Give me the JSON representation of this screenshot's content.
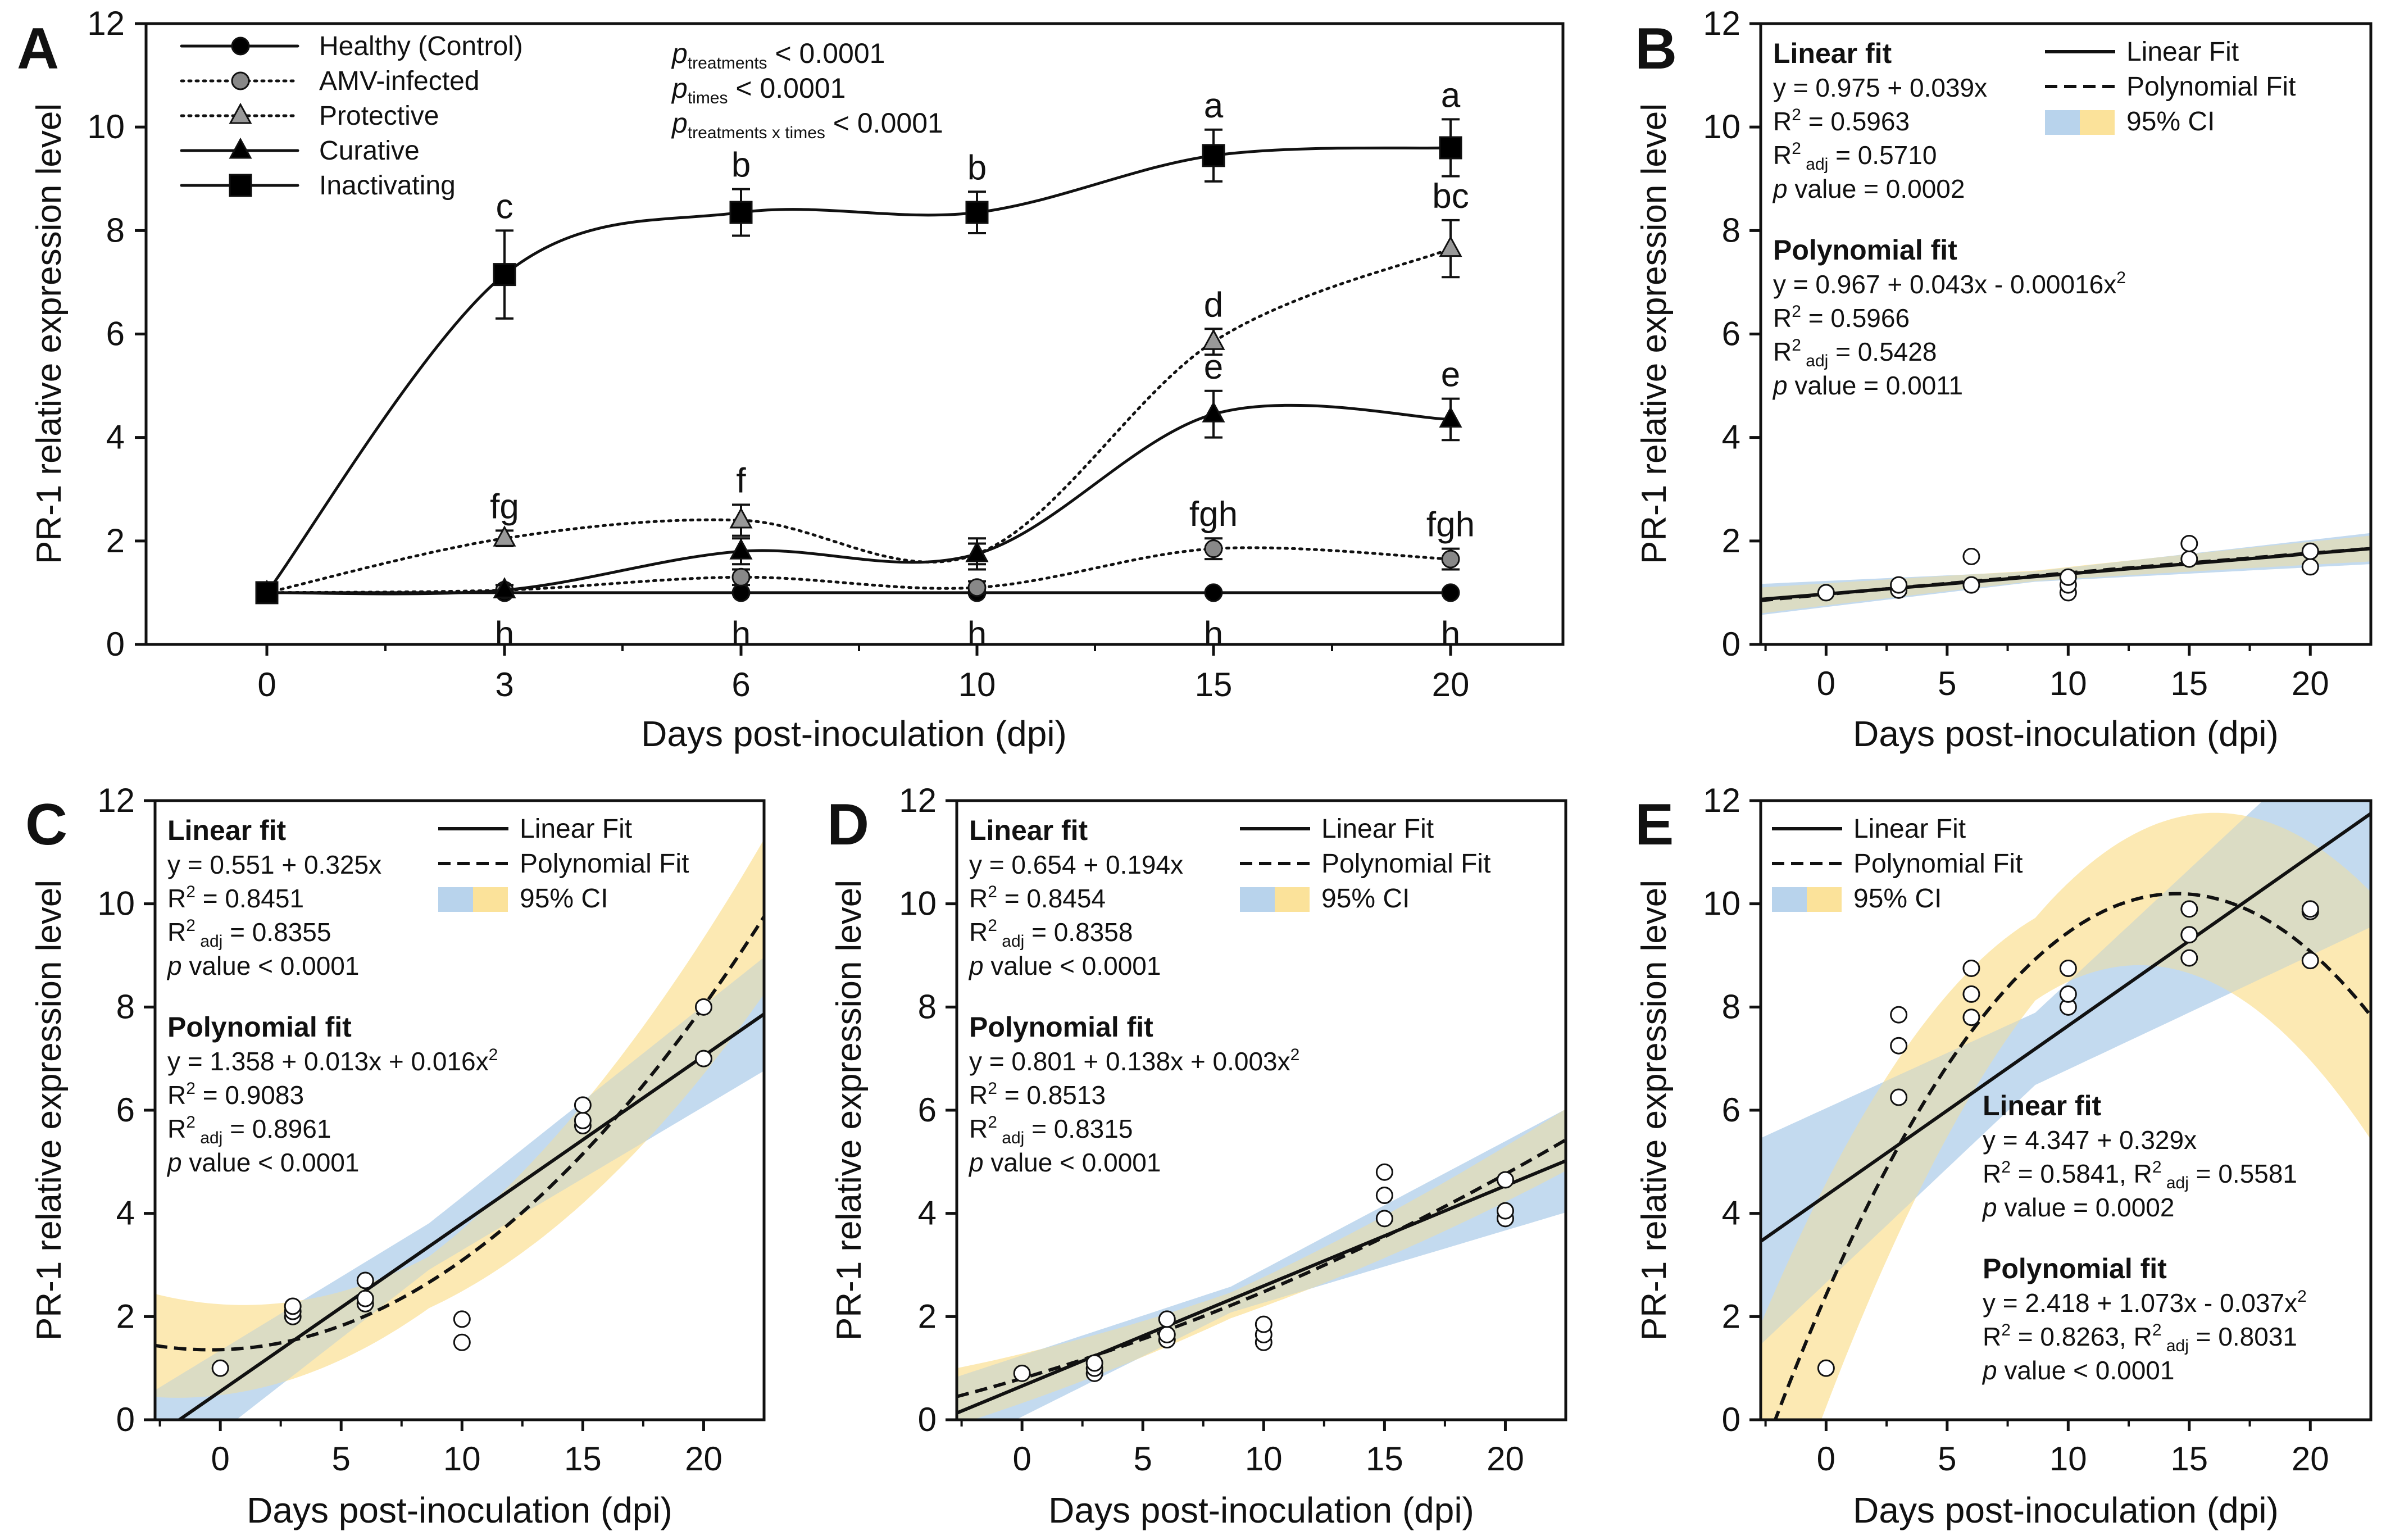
{
  "figure": {
    "x_axis_label": "Days post-inoculation (dpi)",
    "y_axis_label": "PR-1 relative expression level"
  },
  "chart_data": [
    {
      "panel": "A",
      "type": "line",
      "categories": [
        "0",
        "3",
        "6",
        "10",
        "15",
        "20"
      ],
      "xlabel": "Days post-inoculation (dpi)",
      "ylabel": "PR-1 relative expression level",
      "ylim": [
        0,
        12
      ],
      "yticks": [
        "0",
        "2",
        "4",
        "6",
        "8",
        "10",
        "12"
      ],
      "stats": [
        {
          "p": "p",
          "sub": "treatments",
          "text": " < 0.0001"
        },
        {
          "p": "p",
          "sub": "times",
          "text": " < 0.0001"
        },
        {
          "p": "p",
          "sub": "treatments  x times",
          "text": " < 0.0001"
        }
      ],
      "series": [
        {
          "name": "Healthy (Control)",
          "marker": "circle",
          "fill": "#000000",
          "dash": "solid",
          "values": [
            1.0,
            1.0,
            1.0,
            1.0,
            1.0,
            1.0
          ],
          "err": [
            0.05,
            0.05,
            0.05,
            0.05,
            0.05,
            0.05
          ],
          "letters": [
            "",
            "h",
            "h",
            "h",
            "h",
            "h"
          ],
          "letter_pos": "below"
        },
        {
          "name": "AMV-infected",
          "marker": "circle",
          "fill": "#888888",
          "dash": "dotted",
          "values": [
            1.0,
            1.05,
            1.3,
            1.1,
            1.85,
            1.65
          ],
          "err": [
            0.05,
            0.1,
            0.15,
            0.12,
            0.2,
            0.2
          ],
          "letters": [
            "",
            "",
            "",
            "",
            "fgh",
            "fgh"
          ],
          "letter_pos": "above"
        },
        {
          "name": "Protective",
          "marker": "triangle",
          "fill": "#999999",
          "dash": "dotted",
          "values": [
            1.0,
            2.05,
            2.4,
            1.75,
            5.85,
            7.65
          ],
          "err": [
            0.05,
            0.15,
            0.3,
            0.2,
            0.25,
            0.55
          ],
          "letters": [
            "",
            "fg",
            "f",
            "",
            "d",
            "bc"
          ],
          "letter_pos": "above"
        },
        {
          "name": "Curative",
          "marker": "triangle",
          "fill": "#000000",
          "dash": "solid",
          "values": [
            1.0,
            1.05,
            1.8,
            1.75,
            4.45,
            4.35
          ],
          "err": [
            0.05,
            0.1,
            0.25,
            0.3,
            0.45,
            0.4
          ],
          "letters": [
            "",
            "",
            "",
            "",
            "e",
            "e"
          ],
          "letter_pos": "above"
        },
        {
          "name": "Inactivating",
          "marker": "square",
          "fill": "#000000",
          "dash": "solid",
          "values": [
            1.0,
            7.15,
            8.35,
            8.35,
            9.45,
            9.6
          ],
          "err": [
            0.05,
            0.85,
            0.45,
            0.4,
            0.5,
            0.55
          ],
          "letters": [
            "",
            "c",
            "b",
            "b",
            "a",
            "a"
          ],
          "letter_pos": "above"
        }
      ]
    },
    {
      "panel": "B",
      "type": "scatter",
      "xlabel": "Days post-inoculation (dpi)",
      "ylabel": "PR-1 relative expression level",
      "xlim": [
        -2.7,
        22.5
      ],
      "ylim": [
        0,
        12
      ],
      "xticks": [
        "0",
        "5",
        "10",
        "15",
        "20"
      ],
      "yticks": [
        "0",
        "2",
        "4",
        "6",
        "8",
        "10",
        "12"
      ],
      "points": [
        [
          0,
          1.0
        ],
        [
          3,
          1.05
        ],
        [
          3,
          1.15
        ],
        [
          6,
          1.15
        ],
        [
          6,
          1.7
        ],
        [
          10,
          1.0
        ],
        [
          10,
          1.15
        ],
        [
          10,
          1.3
        ],
        [
          15,
          1.65
        ],
        [
          15,
          1.95
        ],
        [
          20,
          1.5
        ],
        [
          20,
          1.8
        ]
      ],
      "linear": {
        "a": 0.975,
        "b": 0.039
      },
      "poly": {
        "a": 0.967,
        "b": 0.043,
        "c": -0.00016
      },
      "ci_half_width": {
        "linear": [
          0.3,
          0.1,
          0.3
        ],
        "poly": [
          0.25,
          0.1,
          0.25
        ]
      },
      "legend": {
        "linear": "Linear Fit",
        "poly": "Polynomial Fit",
        "ci": "95% CI"
      },
      "linear_block": {
        "title": "Linear fit",
        "eq": "y = 0.975 + 0.039x",
        "r2": " = 0.5963",
        "r2adj": " = 0.5710",
        "pval": " value = 0.0002"
      },
      "poly_block": {
        "title": "Polynomial fit",
        "eq": "y = 0.967 + 0.043x - 0.00016x",
        "r2": " = 0.5966",
        "r2adj": " = 0.5428",
        "pval": " value = 0.0011"
      },
      "combined_r2": false
    },
    {
      "panel": "C",
      "type": "scatter",
      "xlabel": "Days post-inoculation (dpi)",
      "ylabel": "PR-1 relative expression level",
      "xlim": [
        -2.7,
        22.5
      ],
      "ylim": [
        0,
        12
      ],
      "xticks": [
        "0",
        "5",
        "10",
        "15",
        "20"
      ],
      "yticks": [
        "0",
        "2",
        "4",
        "6",
        "8",
        "10",
        "12"
      ],
      "points": [
        [
          0,
          1.0
        ],
        [
          3,
          2.0
        ],
        [
          3,
          2.1
        ],
        [
          3,
          2.2
        ],
        [
          6,
          2.25
        ],
        [
          6,
          2.35
        ],
        [
          6,
          2.7
        ],
        [
          10,
          1.5
        ],
        [
          10,
          1.95
        ],
        [
          15,
          5.7
        ],
        [
          15,
          5.8
        ],
        [
          15,
          6.1
        ],
        [
          20,
          7.0
        ],
        [
          20,
          8.0
        ]
      ],
      "linear": {
        "a": 0.551,
        "b": 0.325
      },
      "poly": {
        "a": 1.358,
        "b": 0.013,
        "c": 0.016
      },
      "ci_half_width": {
        "linear": [
          0.9,
          0.45,
          1.1
        ],
        "poly": [
          1.0,
          0.5,
          1.5
        ]
      },
      "legend": {
        "linear": "Linear Fit",
        "poly": "Polynomial Fit",
        "ci": "95% CI"
      },
      "linear_block": {
        "title": "Linear fit",
        "eq": "y = 0.551 + 0.325x",
        "r2": " = 0.8451",
        "r2adj": " = 0.8355",
        "pval": " value < 0.0001"
      },
      "poly_block": {
        "title": "Polynomial fit",
        "eq": "y = 1.358 + 0.013x + 0.016x",
        "r2": " = 0.9083",
        "r2adj": " = 0.8961",
        "pval": " value < 0.0001"
      },
      "combined_r2": false
    },
    {
      "panel": "D",
      "type": "scatter",
      "xlabel": "Days post-inoculation (dpi)",
      "ylabel": "PR-1 relative expression level",
      "xlim": [
        -2.7,
        22.5
      ],
      "ylim": [
        0,
        12
      ],
      "xticks": [
        "0",
        "5",
        "10",
        "15",
        "20"
      ],
      "yticks": [
        "0",
        "2",
        "4",
        "6",
        "8",
        "10",
        "12"
      ],
      "points": [
        [
          0,
          0.9
        ],
        [
          3,
          0.9
        ],
        [
          3,
          1.0
        ],
        [
          3,
          1.1
        ],
        [
          6,
          1.55
        ],
        [
          6,
          1.65
        ],
        [
          6,
          1.95
        ],
        [
          10,
          1.5
        ],
        [
          10,
          1.65
        ],
        [
          10,
          1.85
        ],
        [
          15,
          3.9
        ],
        [
          15,
          4.35
        ],
        [
          15,
          4.8
        ],
        [
          20,
          3.9
        ],
        [
          20,
          4.05
        ],
        [
          20,
          4.65
        ]
      ],
      "linear": {
        "a": 0.654,
        "b": 0.194
      },
      "poly": {
        "a": 0.801,
        "b": 0.138,
        "c": 0.003
      },
      "ci_half_width": {
        "linear": [
          0.7,
          0.25,
          1.0
        ],
        "poly": [
          0.55,
          0.25,
          0.6
        ]
      },
      "legend": {
        "linear": "Linear Fit",
        "poly": "Polynomial Fit",
        "ci": "95% CI"
      },
      "linear_block": {
        "title": "Linear fit",
        "eq": "y = 0.654 + 0.194x",
        "r2": " = 0.8454",
        "r2adj": " = 0.8358",
        "pval": " value < 0.0001"
      },
      "poly_block": {
        "title": "Polynomial fit",
        "eq": "y = 0.801 + 0.138x + 0.003x",
        "r2": " = 0.8513",
        "r2adj": " = 0.8315",
        "pval": " value < 0.0001"
      },
      "combined_r2": false
    },
    {
      "panel": "E",
      "type": "scatter",
      "xlabel": "Days post-inoculation (dpi)",
      "ylabel": "PR-1 relative expression level",
      "xlim": [
        -2.7,
        22.5
      ],
      "ylim": [
        0,
        12
      ],
      "xticks": [
        "0",
        "5",
        "10",
        "15",
        "20"
      ],
      "yticks": [
        "0",
        "2",
        "4",
        "6",
        "8",
        "10",
        "12"
      ],
      "points": [
        [
          0,
          1.0
        ],
        [
          3,
          6.25
        ],
        [
          3,
          7.25
        ],
        [
          3,
          7.85
        ],
        [
          6,
          7.8
        ],
        [
          6,
          8.25
        ],
        [
          6,
          8.75
        ],
        [
          10,
          8.0
        ],
        [
          10,
          8.25
        ],
        [
          10,
          8.75
        ],
        [
          15,
          8.95
        ],
        [
          15,
          9.4
        ],
        [
          15,
          9.9
        ],
        [
          20,
          8.9
        ],
        [
          20,
          9.85
        ],
        [
          20,
          9.9
        ]
      ],
      "linear": {
        "a": 4.347,
        "b": 0.329
      },
      "poly": {
        "a": 2.418,
        "b": 1.073,
        "c": -0.037
      },
      "ci_half_width": {
        "linear": [
          2.0,
          0.7,
          2.2
        ],
        "poly": [
          2.6,
          0.8,
          2.4
        ]
      },
      "legend": {
        "linear": "Linear Fit",
        "poly": "Polynomial Fit",
        "ci": "95% CI"
      },
      "linear_block": {
        "title": "Linear fit",
        "eq": "y = 4.347 + 0.329x",
        "r2": " = 0.5841, R",
        "r2adj": " = 0.5581",
        "pval": " value = 0.0002"
      },
      "poly_block": {
        "title": "Polynomial fit",
        "eq": "y = 2.418 + 1.073x - 0.037x",
        "r2": " = 0.8263, R",
        "r2adj": " = 0.8031",
        "pval": " value < 0.0001"
      },
      "combined_r2": true
    }
  ],
  "colors": {
    "ci_blue": "#b8d3ec",
    "ci_yellow": "#fbe29a",
    "ink": "#111111"
  }
}
